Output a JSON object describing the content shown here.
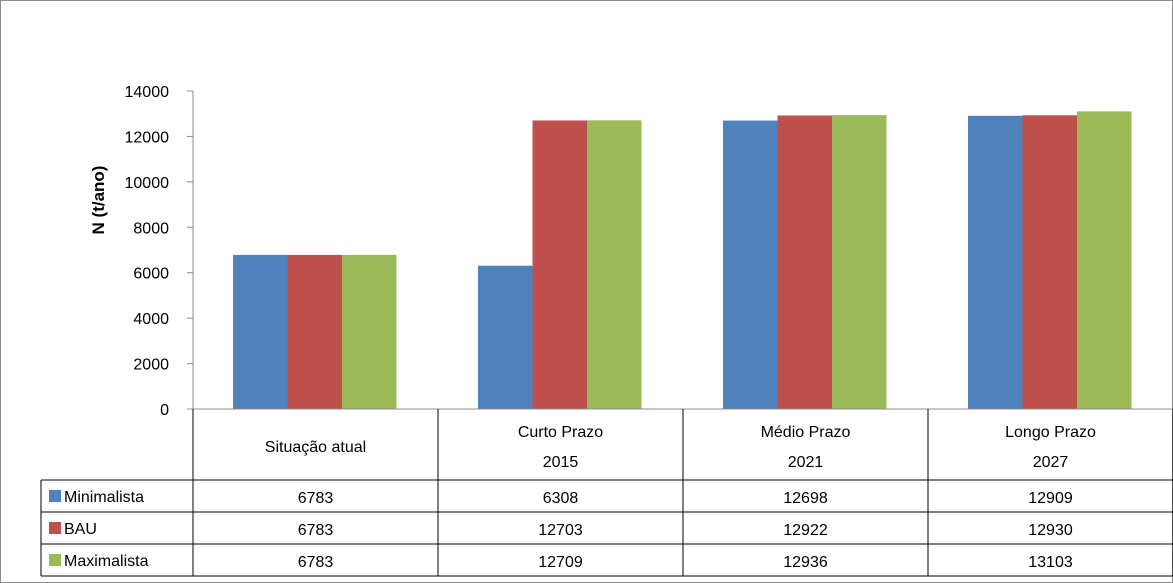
{
  "chart_data": {
    "type": "bar",
    "title": "",
    "ylabel": "N (t/ano)",
    "xlabel": "",
    "ylim": [
      0,
      14000
    ],
    "yticks": [
      0,
      2000,
      4000,
      6000,
      8000,
      10000,
      12000,
      14000
    ],
    "grid": false,
    "legend": "data-table",
    "categories": [
      {
        "line1": "Situação atual",
        "line2": ""
      },
      {
        "line1": "Curto Prazo",
        "line2": "2015"
      },
      {
        "line1": "Médio Prazo",
        "line2": "2021"
      },
      {
        "line1": "Longo Prazo",
        "line2": "2027"
      }
    ],
    "series": [
      {
        "name": "Minimalista",
        "color": "#4f81bd",
        "values": [
          6783,
          6308,
          12698,
          12909
        ]
      },
      {
        "name": "BAU",
        "color": "#c0504d",
        "values": [
          6783,
          12703,
          12922,
          12930
        ]
      },
      {
        "name": "Maximalista",
        "color": "#9bbb59",
        "values": [
          6783,
          12709,
          12936,
          13103
        ]
      }
    ]
  }
}
